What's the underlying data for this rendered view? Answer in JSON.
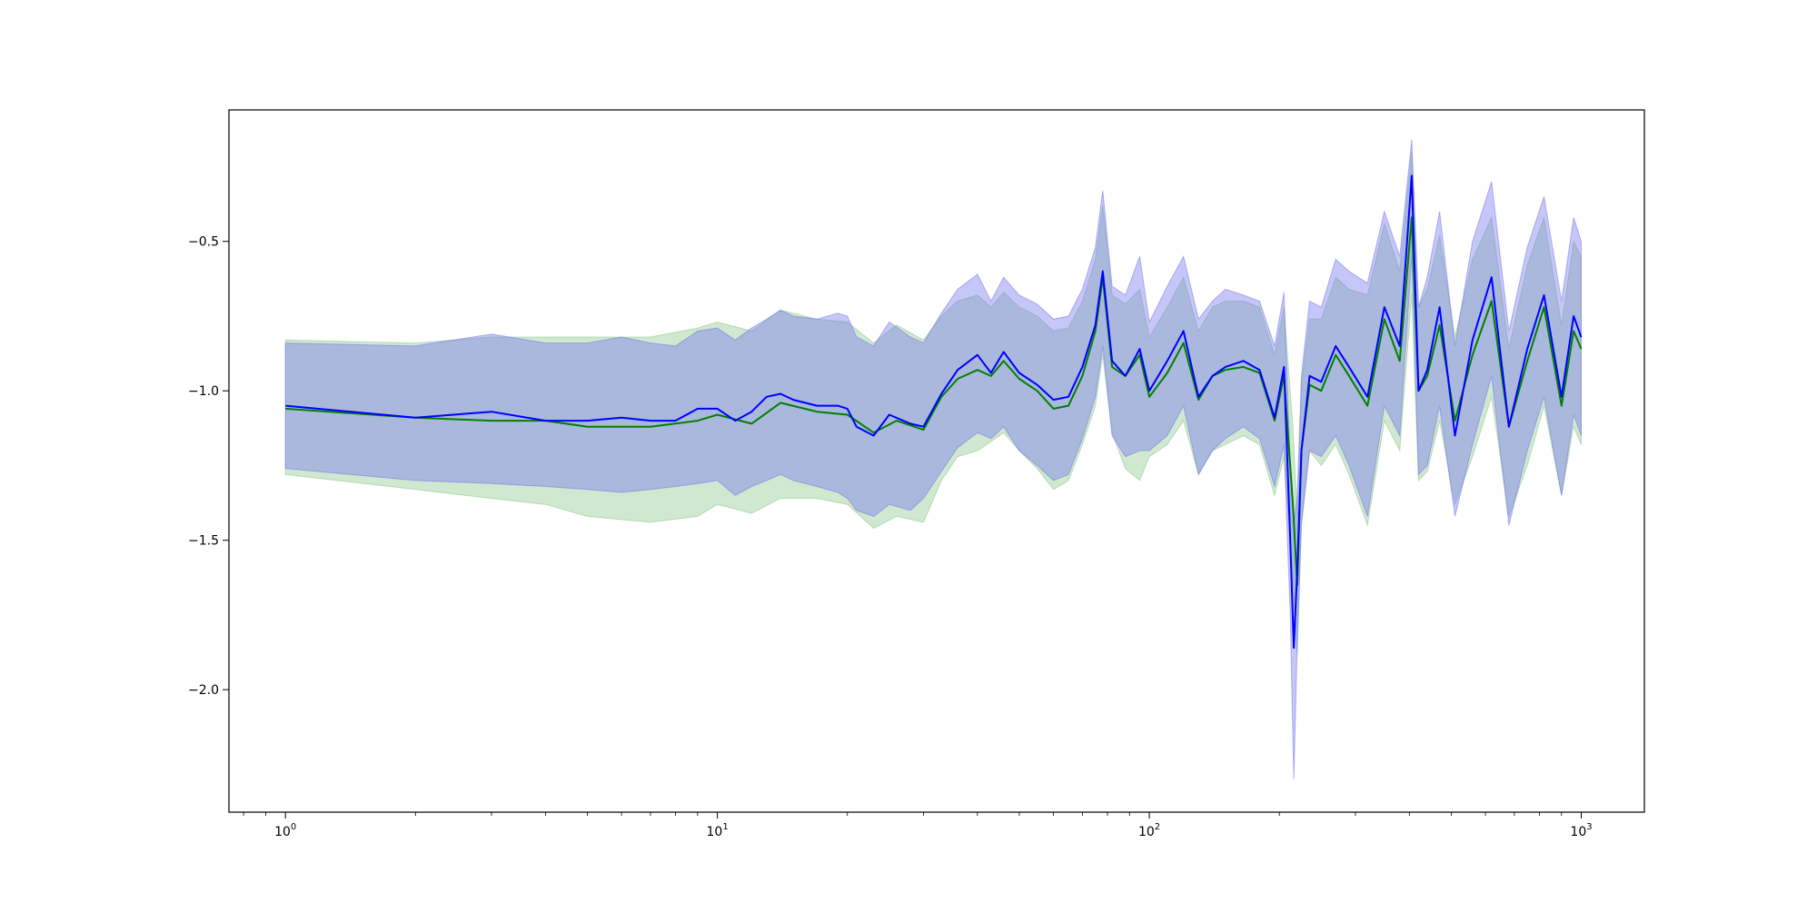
{
  "chart_data": {
    "type": "line",
    "title": "",
    "xlabel": "",
    "ylabel": "",
    "x_scale": "log",
    "xlim": [
      0.74,
      1400
    ],
    "ylim": [
      -2.41,
      -0.06
    ],
    "grid": false,
    "legend": "none",
    "x_ticks": [
      {
        "value": 1,
        "base": "10",
        "exp": "0"
      },
      {
        "value": 10,
        "base": "10",
        "exp": "1"
      },
      {
        "value": 100,
        "base": "10",
        "exp": "2"
      },
      {
        "value": 1000,
        "base": "10",
        "exp": "3"
      }
    ],
    "y_ticks": [
      {
        "value": -0.5,
        "label": "−0.5"
      },
      {
        "value": -1.0,
        "label": "−1.0"
      },
      {
        "value": -1.5,
        "label": "−1.5"
      },
      {
        "value": -2.0,
        "label": "−2.0"
      }
    ],
    "colors": {
      "green_line": "#008000",
      "green_band": "#86c586",
      "blue_line": "#0000ff",
      "blue_band": "#7070f0",
      "axes": "#000000"
    },
    "series": [
      {
        "color_key": "green",
        "x": [
          1,
          2,
          3,
          4,
          5,
          7,
          9,
          10,
          12,
          14,
          17,
          20,
          23,
          26,
          30,
          33,
          36,
          40,
          43,
          46,
          50,
          55,
          60,
          65,
          70,
          75,
          78,
          82,
          88,
          95,
          100,
          110,
          120,
          130,
          140,
          150,
          165,
          180,
          195,
          205,
          215,
          220,
          225,
          235,
          250,
          270,
          290,
          320,
          350,
          380,
          405,
          420,
          440,
          470,
          510,
          560,
          620,
          680,
          750,
          820,
          900,
          960,
          1000
        ],
        "y": [
          -1.06,
          -1.09,
          -1.1,
          -1.1,
          -1.12,
          -1.12,
          -1.1,
          -1.08,
          -1.11,
          -1.04,
          -1.07,
          -1.08,
          -1.14,
          -1.1,
          -1.13,
          -1.02,
          -0.96,
          -0.93,
          -0.95,
          -0.9,
          -0.96,
          -1.0,
          -1.06,
          -1.05,
          -0.95,
          -0.8,
          -0.62,
          -0.92,
          -0.95,
          -0.88,
          -1.02,
          -0.94,
          -0.84,
          -1.03,
          -0.95,
          -0.93,
          -0.92,
          -0.94,
          -1.1,
          -0.95,
          -1.38,
          -1.65,
          -1.2,
          -0.98,
          -1.0,
          -0.88,
          -0.95,
          -1.05,
          -0.76,
          -0.9,
          -0.42,
          -1.0,
          -0.95,
          -0.78,
          -1.1,
          -0.88,
          -0.7,
          -1.12,
          -0.9,
          -0.72,
          -1.05,
          -0.8,
          -0.86
        ],
        "lower": [
          -1.28,
          -1.33,
          -1.36,
          -1.38,
          -1.42,
          -1.44,
          -1.42,
          -1.38,
          -1.41,
          -1.36,
          -1.36,
          -1.38,
          -1.46,
          -1.42,
          -1.44,
          -1.3,
          -1.22,
          -1.2,
          -1.17,
          -1.14,
          -1.2,
          -1.26,
          -1.33,
          -1.3,
          -1.18,
          -1.05,
          -0.88,
          -1.14,
          -1.26,
          -1.3,
          -1.22,
          -1.18,
          -1.1,
          -1.28,
          -1.2,
          -1.18,
          -1.15,
          -1.18,
          -1.35,
          -1.22,
          -1.62,
          -1.88,
          -1.44,
          -1.2,
          -1.25,
          -1.18,
          -1.28,
          -1.45,
          -1.1,
          -1.2,
          -0.68,
          -1.3,
          -1.27,
          -1.1,
          -1.38,
          -1.22,
          -1.02,
          -1.42,
          -1.25,
          -1.05,
          -1.35,
          -1.12,
          -1.18
        ],
        "upper": [
          -0.83,
          -0.84,
          -0.82,
          -0.82,
          -0.82,
          -0.82,
          -0.79,
          -0.77,
          -0.8,
          -0.73,
          -0.76,
          -0.77,
          -0.84,
          -0.78,
          -0.83,
          -0.75,
          -0.7,
          -0.68,
          -0.72,
          -0.67,
          -0.72,
          -0.75,
          -0.8,
          -0.79,
          -0.7,
          -0.56,
          -0.38,
          -0.68,
          -0.71,
          -0.66,
          -0.82,
          -0.72,
          -0.62,
          -0.8,
          -0.72,
          -0.7,
          -0.7,
          -0.72,
          -0.88,
          -0.72,
          -1.12,
          -1.42,
          -0.98,
          -0.76,
          -0.76,
          -0.62,
          -0.66,
          -0.68,
          -0.44,
          -0.6,
          -0.2,
          -0.72,
          -0.66,
          -0.48,
          -0.82,
          -0.56,
          -0.42,
          -0.86,
          -0.58,
          -0.42,
          -0.78,
          -0.5,
          -0.55
        ]
      },
      {
        "color_key": "blue",
        "x": [
          1,
          2,
          3,
          4,
          5,
          6,
          7,
          8,
          9,
          10,
          11,
          12,
          13,
          14,
          15,
          17,
          19,
          20,
          21,
          23,
          25,
          28,
          30,
          33,
          36,
          40,
          43,
          46,
          50,
          55,
          60,
          65,
          70,
          75,
          78,
          82,
          88,
          95,
          100,
          110,
          120,
          130,
          140,
          150,
          165,
          180,
          195,
          205,
          212,
          216,
          220,
          225,
          235,
          250,
          270,
          290,
          320,
          350,
          380,
          405,
          420,
          440,
          470,
          510,
          560,
          620,
          680,
          750,
          820,
          900,
          960,
          1000
        ],
        "y": [
          -1.05,
          -1.09,
          -1.07,
          -1.1,
          -1.1,
          -1.09,
          -1.1,
          -1.1,
          -1.06,
          -1.06,
          -1.1,
          -1.07,
          -1.02,
          -1.01,
          -1.03,
          -1.05,
          -1.05,
          -1.06,
          -1.12,
          -1.15,
          -1.08,
          -1.11,
          -1.12,
          -1.01,
          -0.93,
          -0.88,
          -0.94,
          -0.87,
          -0.94,
          -0.98,
          -1.03,
          -1.02,
          -0.92,
          -0.78,
          -0.6,
          -0.9,
          -0.95,
          -0.86,
          -1.0,
          -0.9,
          -0.8,
          -1.02,
          -0.95,
          -0.92,
          -0.9,
          -0.93,
          -1.09,
          -0.92,
          -1.5,
          -1.86,
          -1.6,
          -1.2,
          -0.95,
          -0.97,
          -0.85,
          -0.92,
          -1.02,
          -0.72,
          -0.85,
          -0.28,
          -1.0,
          -0.93,
          -0.72,
          -1.15,
          -0.83,
          -0.62,
          -1.12,
          -0.86,
          -0.68,
          -1.02,
          -0.75,
          -0.82
        ],
        "lower": [
          -1.26,
          -1.3,
          -1.31,
          -1.32,
          -1.33,
          -1.34,
          -1.33,
          -1.32,
          -1.31,
          -1.3,
          -1.35,
          -1.32,
          -1.3,
          -1.28,
          -1.3,
          -1.32,
          -1.34,
          -1.36,
          -1.4,
          -1.42,
          -1.38,
          -1.4,
          -1.36,
          -1.27,
          -1.19,
          -1.14,
          -1.16,
          -1.12,
          -1.2,
          -1.25,
          -1.3,
          -1.28,
          -1.16,
          -1.02,
          -0.85,
          -1.15,
          -1.22,
          -1.2,
          -1.2,
          -1.15,
          -1.05,
          -1.28,
          -1.2,
          -1.16,
          -1.12,
          -1.16,
          -1.32,
          -1.18,
          -1.75,
          -2.3,
          -1.85,
          -1.45,
          -1.2,
          -1.22,
          -1.15,
          -1.25,
          -1.42,
          -1.05,
          -1.15,
          -0.55,
          -1.28,
          -1.25,
          -1.05,
          -1.42,
          -1.18,
          -0.95,
          -1.45,
          -1.2,
          -1.02,
          -1.35,
          -1.08,
          -1.15
        ],
        "upper": [
          -0.84,
          -0.85,
          -0.81,
          -0.84,
          -0.84,
          -0.82,
          -0.84,
          -0.85,
          -0.8,
          -0.79,
          -0.83,
          -0.79,
          -0.76,
          -0.73,
          -0.75,
          -0.76,
          -0.74,
          -0.75,
          -0.82,
          -0.85,
          -0.77,
          -0.82,
          -0.84,
          -0.74,
          -0.66,
          -0.61,
          -0.7,
          -0.62,
          -0.68,
          -0.71,
          -0.76,
          -0.75,
          -0.66,
          -0.52,
          -0.33,
          -0.65,
          -0.68,
          -0.55,
          -0.77,
          -0.65,
          -0.55,
          -0.76,
          -0.7,
          -0.66,
          -0.68,
          -0.7,
          -0.85,
          -0.67,
          -1.25,
          -1.45,
          -1.35,
          -0.95,
          -0.7,
          -0.72,
          -0.56,
          -0.6,
          -0.64,
          -0.4,
          -0.55,
          -0.16,
          -0.72,
          -0.62,
          -0.4,
          -0.85,
          -0.5,
          -0.3,
          -0.8,
          -0.52,
          -0.35,
          -0.7,
          -0.42,
          -0.5
        ]
      }
    ]
  }
}
